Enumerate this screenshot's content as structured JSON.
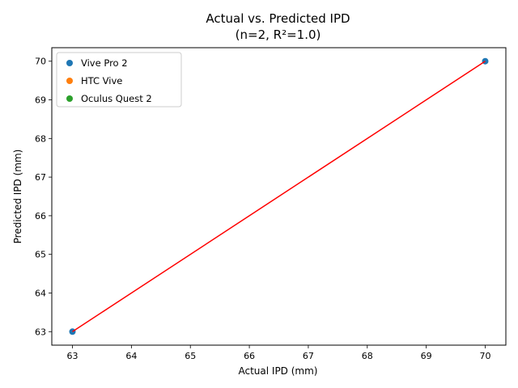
{
  "chart_data": {
    "type": "scatter",
    "title": "Actual vs. Predicted IPD",
    "subtitle": "(n=2, R²=1.0)",
    "xlabel": "Actual IPD (mm)",
    "ylabel": "Predicted IPD (mm)",
    "xlim": [
      62.65,
      70.35
    ],
    "ylim": [
      62.65,
      70.35
    ],
    "xticks": [
      63,
      64,
      65,
      66,
      67,
      68,
      69,
      70
    ],
    "yticks": [
      63,
      64,
      65,
      66,
      67,
      68,
      69,
      70
    ],
    "grid": false,
    "legend_position": "top-left",
    "series": [
      {
        "name": "Vive Pro 2",
        "color": "#1f77b4",
        "points": [
          {
            "x": 63,
            "y": 63
          },
          {
            "x": 70,
            "y": 70
          }
        ]
      },
      {
        "name": "HTC Vive",
        "color": "#ff7f0e",
        "points": []
      },
      {
        "name": "Oculus Quest 2",
        "color": "#2ca02c",
        "points": []
      }
    ],
    "fit_line": {
      "color": "#ff0000",
      "points": [
        {
          "x": 63,
          "y": 63
        },
        {
          "x": 70,
          "y": 70
        }
      ]
    }
  }
}
